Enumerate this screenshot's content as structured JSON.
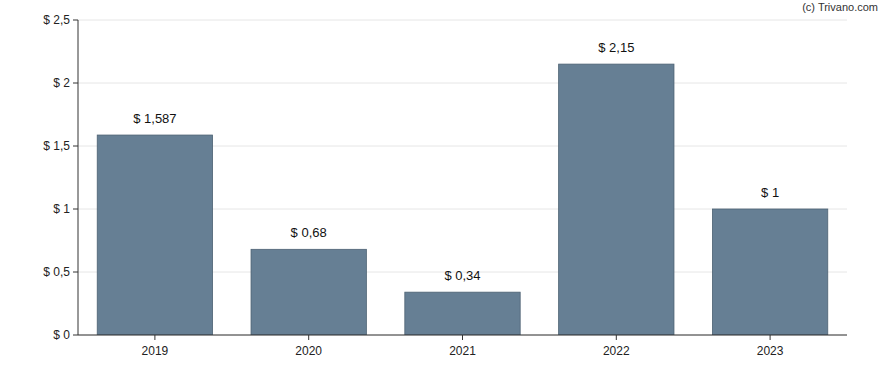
{
  "chart_data": {
    "type": "bar",
    "annotations": [
      "(c) Trivano.com"
    ],
    "categories": [
      "2019",
      "2020",
      "2021",
      "2022",
      "2023"
    ],
    "values": [
      1.587,
      0.68,
      0.34,
      2.15,
      1
    ],
    "value_labels": [
      "$ 1,587",
      "$ 0,68",
      "$ 0,34",
      "$ 2,15",
      "$ 1"
    ],
    "color": "#667f94",
    "ylim": [
      0,
      2.5
    ],
    "yticks": [
      {
        "value": 0,
        "label": "$ 0"
      },
      {
        "value": 0.5,
        "label": "$ 0,5"
      },
      {
        "value": 1,
        "label": "$ 1"
      },
      {
        "value": 1.5,
        "label": "$ 1,5"
      },
      {
        "value": 2,
        "label": "$ 2"
      },
      {
        "value": 2.5,
        "label": "$ 2,5"
      }
    ],
    "grid": true,
    "data_labels": true
  }
}
